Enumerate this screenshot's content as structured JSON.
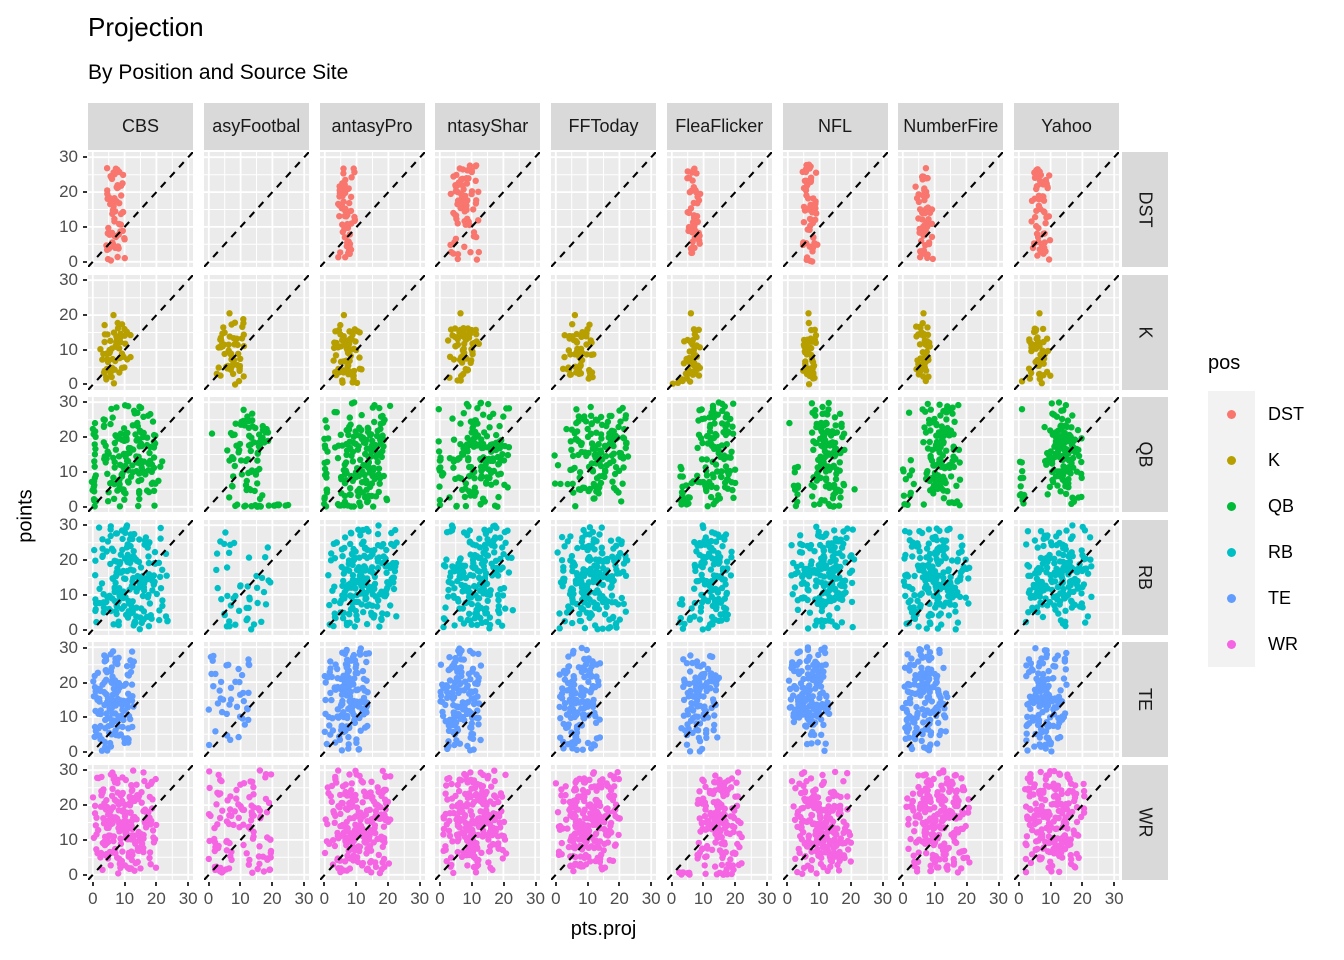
{
  "title": "Projection",
  "subtitle": "By Position and Source Site",
  "axes": {
    "x_label": "pts.proj",
    "y_label": "points",
    "x_ticks": [
      0,
      10,
      20,
      30
    ],
    "y_ticks": [
      30,
      20,
      10,
      0
    ],
    "x_range": [
      -1.5,
      31.5
    ],
    "y_range": [
      -1.5,
      31.5
    ]
  },
  "legend": {
    "title": "pos",
    "entries": [
      {
        "label": "DST",
        "color": "#F8766D"
      },
      {
        "label": "K",
        "color": "#B79F00"
      },
      {
        "label": "QB",
        "color": "#00BA38"
      },
      {
        "label": "RB",
        "color": "#00BFC4"
      },
      {
        "label": "TE",
        "color": "#619CFF"
      },
      {
        "label": "WR",
        "color": "#F564E3"
      }
    ]
  },
  "colors": {
    "panel_bg": "#EBEBEB",
    "grid": "#FFFFFF",
    "strip_bg": "#D9D9D9",
    "legend_key_bg": "#F2F2F2",
    "tick_label": "#4D4D4D",
    "dashed_line": "#000000"
  },
  "chart_data": {
    "type": "scatter",
    "facet_columns": [
      "CBS",
      "asyFootbal",
      "antasyPro",
      "ntasyShar",
      "FFToday",
      "FleaFlicker",
      "NFL",
      "NumberFire",
      "Yahoo"
    ],
    "facet_rows": [
      {
        "label": "DST",
        "color": "#F8766D"
      },
      {
        "label": "K",
        "color": "#B79F00"
      },
      {
        "label": "QB",
        "color": "#00BA38"
      },
      {
        "label": "RB",
        "color": "#00BFC4"
      },
      {
        "label": "TE",
        "color": "#619CFF"
      },
      {
        "label": "WR",
        "color": "#F564E3"
      }
    ],
    "identity_line": {
      "style": "dashed",
      "equation": "y = x"
    },
    "point_clusters": {
      "DST": [
        [
          {
            "t": "v",
            "n": 65,
            "x": [
              3.5,
              10.5
            ],
            "y": [
              0,
              27
            ]
          }
        ],
        [],
        [
          {
            "t": "v",
            "n": 60,
            "x": [
              4,
              10
            ],
            "y": [
              1,
              27
            ]
          }
        ],
        [
          {
            "t": "v",
            "n": 75,
            "x": [
              3,
              12.5
            ],
            "y": [
              0.5,
              28
            ]
          }
        ],
        [],
        [
          {
            "t": "v",
            "n": 50,
            "x": [
              4.5,
              9
            ],
            "y": [
              2,
              27
            ]
          }
        ],
        [
          {
            "t": "v",
            "n": 60,
            "x": [
              4.5,
              9.5
            ],
            "y": [
              0,
              28
            ]
          }
        ],
        [
          {
            "t": "v",
            "n": 60,
            "x": [
              4,
              9.5
            ],
            "y": [
              0.5,
              27
            ]
          }
        ],
        [
          {
            "t": "v",
            "n": 60,
            "x": [
              4,
              10
            ],
            "y": [
              0.5,
              27
            ]
          }
        ]
      ],
      "K": [
        [
          {
            "t": "g",
            "n": 60,
            "x": [
              2,
              12
            ],
            "y": [
              0,
              18
            ]
          },
          {
            "t": "d",
            "p": [
              6.5,
              20
            ]
          }
        ],
        [
          {
            "t": "g",
            "n": 55,
            "x": [
              2.5,
              11.5
            ],
            "y": [
              0,
              19
            ]
          },
          {
            "t": "d",
            "p": [
              6.5,
              20.5
            ]
          }
        ],
        [
          {
            "t": "g",
            "n": 60,
            "x": [
              2.5,
              12
            ],
            "y": [
              0,
              18
            ]
          },
          {
            "t": "d",
            "p": [
              6,
              20
            ]
          }
        ],
        [
          {
            "t": "g",
            "n": 60,
            "x": [
              2.5,
              12.5
            ],
            "y": [
              0,
              18
            ]
          },
          {
            "t": "d",
            "p": [
              6.5,
              20.5
            ]
          }
        ],
        [
          {
            "t": "g",
            "n": 60,
            "x": [
              2,
              12
            ],
            "y": [
              0,
              18
            ]
          },
          {
            "t": "d",
            "p": [
              6,
              20
            ]
          }
        ],
        [
          {
            "t": "g",
            "n": 45,
            "x": [
              3.5,
              9
            ],
            "y": [
              0,
              16
            ]
          },
          {
            "t": "d",
            "p": [
              6,
              20.5
            ]
          },
          {
            "t": "u",
            "n": 6,
            "x": [
              0,
              4
            ],
            "y": [
              0,
              2
            ]
          }
        ],
        [
          {
            "t": "g",
            "n": 45,
            "x": [
              4.5,
              9
            ],
            "y": [
              0,
              18
            ]
          },
          {
            "t": "d",
            "p": [
              6.5,
              20.5
            ]
          }
        ],
        [
          {
            "t": "g",
            "n": 50,
            "x": [
              4,
              9.5
            ],
            "y": [
              0,
              18
            ]
          },
          {
            "t": "d",
            "p": [
              6.5,
              20.5
            ]
          }
        ],
        [
          {
            "t": "g",
            "n": 50,
            "x": [
              3,
              10
            ],
            "y": [
              0,
              17
            ]
          },
          {
            "t": "d",
            "p": [
              6.5,
              20.5
            ]
          },
          {
            "t": "d",
            "p": [
              1,
              1
            ]
          }
        ]
      ],
      "QB": [
        [
          {
            "t": "g",
            "n": 150,
            "x": [
              3,
              22
            ],
            "y": [
              0,
              30
            ]
          },
          {
            "t": "v",
            "n": 22,
            "x": [
              -0.5,
              1.2
            ],
            "y": [
              0,
              25
            ]
          }
        ],
        [
          {
            "t": "g",
            "n": 70,
            "x": [
              5,
              19
            ],
            "y": [
              2,
              30
            ]
          },
          {
            "t": "h",
            "n": 18,
            "x": [
              7,
              25
            ]
          },
          {
            "t": "d",
            "p": [
              1,
              21
            ]
          }
        ],
        [
          {
            "t": "g",
            "n": 150,
            "x": [
              3,
              21
            ],
            "y": [
              0,
              30
            ]
          },
          {
            "t": "v",
            "n": 20,
            "x": [
              -0.5,
              1.2
            ],
            "y": [
              0,
              26
            ]
          },
          {
            "t": "h",
            "n": 8,
            "x": [
              2,
              12
            ]
          }
        ],
        [
          {
            "t": "g",
            "n": 150,
            "x": [
              3,
              22
            ],
            "y": [
              0,
              30
            ]
          },
          {
            "t": "v",
            "n": 14,
            "x": [
              -0.5,
              1.2
            ],
            "y": [
              0,
              22
            ]
          },
          {
            "t": "d",
            "p": [
              -0.3,
              28
            ]
          }
        ],
        [
          {
            "t": "g",
            "n": 150,
            "x": [
              3,
              23
            ],
            "y": [
              0,
              30
            ]
          },
          {
            "t": "u",
            "n": 4,
            "x": [
              -0.5,
              1.5
            ],
            "y": [
              6,
              16
            ]
          }
        ],
        [
          {
            "t": "g",
            "n": 110,
            "x": [
              8,
              20
            ],
            "y": [
              0,
              30
            ]
          },
          {
            "t": "v",
            "n": 10,
            "x": [
              2.5,
              4
            ],
            "y": [
              0,
              13
            ]
          },
          {
            "t": "u",
            "n": 8,
            "x": [
              4,
              8
            ],
            "y": [
              0,
              8
            ]
          }
        ],
        [
          {
            "t": "g",
            "n": 130,
            "x": [
              7,
              18
            ],
            "y": [
              0,
              30
            ]
          },
          {
            "t": "v",
            "n": 12,
            "x": [
              1.5,
              3.5
            ],
            "y": [
              0,
              12
            ]
          },
          {
            "t": "d",
            "p": [
              21,
              5
            ]
          },
          {
            "t": "d",
            "p": [
              0.5,
              24
            ]
          }
        ],
        [
          {
            "t": "g",
            "n": 120,
            "x": [
              6,
              18
            ],
            "y": [
              0,
              30
            ]
          },
          {
            "t": "u",
            "n": 12,
            "x": [
              0,
              4.5
            ],
            "y": [
              0,
              15
            ]
          },
          {
            "t": "d",
            "p": [
              2,
              27
            ]
          }
        ],
        [
          {
            "t": "g",
            "n": 130,
            "x": [
              8,
              20
            ],
            "y": [
              0,
              30
            ]
          },
          {
            "t": "v",
            "n": 12,
            "x": [
              0,
              2
            ],
            "y": [
              0,
              15
            ]
          },
          {
            "t": "d",
            "p": [
              1,
              28
            ]
          }
        ]
      ],
      "RB": [
        [
          {
            "t": "g",
            "n": 200,
            "x": [
              0,
              24
            ],
            "y": [
              0,
              30
            ]
          }
        ],
        [
          {
            "t": "u",
            "n": 45,
            "x": [
              1,
              20
            ],
            "y": [
              0,
              28
            ]
          }
        ],
        [
          {
            "t": "g",
            "n": 200,
            "x": [
              1,
              23
            ],
            "y": [
              0,
              30
            ]
          }
        ],
        [
          {
            "t": "g",
            "n": 190,
            "x": [
              1,
              23
            ],
            "y": [
              0,
              30
            ]
          }
        ],
        [
          {
            "t": "g",
            "n": 200,
            "x": [
              0,
              23
            ],
            "y": [
              0,
              30
            ]
          }
        ],
        [
          {
            "t": "g",
            "n": 130,
            "x": [
              7,
              19
            ],
            "y": [
              0,
              30
            ]
          },
          {
            "t": "u",
            "n": 10,
            "x": [
              2,
              7
            ],
            "y": [
              0,
              10
            ]
          }
        ],
        [
          {
            "t": "g",
            "n": 180,
            "x": [
              1,
              21
            ],
            "y": [
              0,
              30
            ]
          }
        ],
        [
          {
            "t": "g",
            "n": 190,
            "x": [
              0,
              21
            ],
            "y": [
              0,
              30
            ]
          }
        ],
        [
          {
            "t": "g",
            "n": 180,
            "x": [
              2,
              23
            ],
            "y": [
              0,
              30
            ]
          }
        ]
      ],
      "TE": [
        [
          {
            "t": "g",
            "n": 150,
            "x": [
              0,
              13
            ],
            "y": [
              0,
              30
            ]
          }
        ],
        [
          {
            "t": "u",
            "n": 42,
            "x": [
              0,
              13
            ],
            "y": [
              0,
              28
            ]
          }
        ],
        [
          {
            "t": "g",
            "n": 150,
            "x": [
              0,
              14
            ],
            "y": [
              0,
              30
            ]
          }
        ],
        [
          {
            "t": "g",
            "n": 140,
            "x": [
              0,
              13
            ],
            "y": [
              0,
              30
            ]
          }
        ],
        [
          {
            "t": "g",
            "n": 140,
            "x": [
              0,
              14
            ],
            "y": [
              0,
              30
            ]
          }
        ],
        [
          {
            "t": "g",
            "n": 110,
            "x": [
              3,
              15
            ],
            "y": [
              0,
              30
            ]
          }
        ],
        [
          {
            "t": "g",
            "n": 140,
            "x": [
              0,
              13
            ],
            "y": [
              0,
              30
            ]
          }
        ],
        [
          {
            "t": "g",
            "n": 150,
            "x": [
              0,
              14
            ],
            "y": [
              0,
              30
            ]
          }
        ],
        [
          {
            "t": "g",
            "n": 140,
            "x": [
              2,
              15
            ],
            "y": [
              0,
              30
            ]
          }
        ]
      ],
      "WR": [
        [
          {
            "t": "g",
            "n": 220,
            "x": [
              0,
              20
            ],
            "y": [
              0,
              30
            ]
          }
        ],
        [
          {
            "t": "u",
            "n": 110,
            "x": [
              0,
              20
            ],
            "y": [
              0,
              30
            ]
          }
        ],
        [
          {
            "t": "g",
            "n": 220,
            "x": [
              0,
              21
            ],
            "y": [
              0,
              30
            ]
          }
        ],
        [
          {
            "t": "g",
            "n": 220,
            "x": [
              1,
              21
            ],
            "y": [
              0,
              30
            ]
          }
        ],
        [
          {
            "t": "g",
            "n": 220,
            "x": [
              0,
              21
            ],
            "y": [
              0,
              30
            ]
          }
        ],
        [
          {
            "t": "g",
            "n": 160,
            "x": [
              8,
              22
            ],
            "y": [
              0,
              30
            ]
          },
          {
            "t": "h",
            "n": 16,
            "x": [
              2,
              18
            ]
          }
        ],
        [
          {
            "t": "g",
            "n": 200,
            "x": [
              1,
              20
            ],
            "y": [
              0,
              30
            ]
          }
        ],
        [
          {
            "t": "g",
            "n": 210,
            "x": [
              1,
              21
            ],
            "y": [
              0,
              30
            ]
          }
        ],
        [
          {
            "t": "g",
            "n": 200,
            "x": [
              2,
              21
            ],
            "y": [
              0,
              30
            ]
          }
        ]
      ]
    }
  }
}
